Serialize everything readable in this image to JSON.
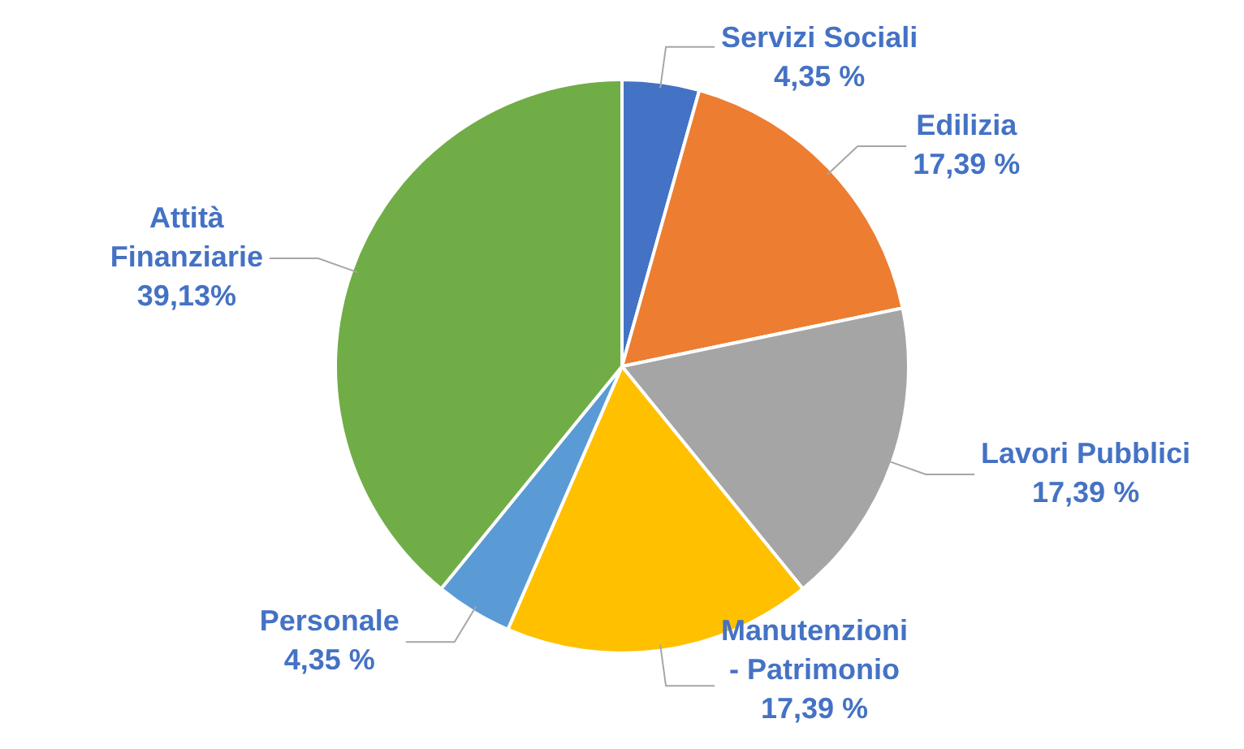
{
  "chart_data": {
    "type": "pie",
    "categories": [
      "Servizi Sociali",
      "Edilizia",
      "Lavori Pubblici",
      "Manutenzioni - Patrimonio",
      "Personale",
      "Attità Finanziarie"
    ],
    "values": [
      4.35,
      17.39,
      17.39,
      17.39,
      4.35,
      39.13
    ],
    "value_labels": [
      "4,35 %",
      "17,39 %",
      "17,39 %",
      "17,39 %",
      "4,35 %",
      "39,13%"
    ],
    "colors": [
      "#4472c4",
      "#ed7d31",
      "#a5a5a5",
      "#ffc000",
      "#5b9bd5",
      "#70ad47"
    ],
    "legend": false
  }
}
